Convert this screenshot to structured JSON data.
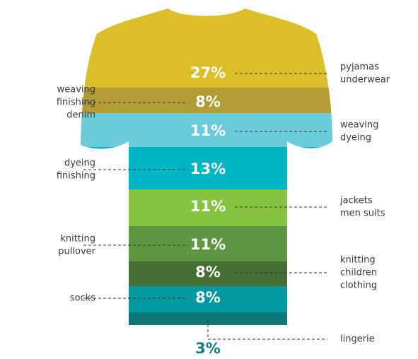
{
  "chart_data": {
    "type": "stacked-shirt",
    "segments": [
      {
        "id": "pyjamas",
        "value": 27,
        "label": "27%",
        "color": "#dcbd2a",
        "desc_lines": [
          "pyjamas",
          "underwear"
        ],
        "side": "right"
      },
      {
        "id": "weaving-finishing-denim",
        "value": 8,
        "label": "8%",
        "color": "#b49c35",
        "desc_lines": [
          "weaving",
          "finishing",
          "denim"
        ],
        "side": "left"
      },
      {
        "id": "weaving-dyeing",
        "value": 11,
        "label": "11%",
        "color": "#6ccbd9",
        "desc_lines": [
          "weaving",
          "dyeing"
        ],
        "side": "right"
      },
      {
        "id": "dyeing-finishing",
        "value": 13,
        "label": "13%",
        "color": "#00b5c3",
        "desc_lines": [
          "dyeing",
          "finishing"
        ],
        "side": "left"
      },
      {
        "id": "jackets",
        "value": 11,
        "label": "11%",
        "color": "#86c341",
        "desc_lines": [
          "jackets",
          "men suits"
        ],
        "side": "right"
      },
      {
        "id": "knitting-pullover",
        "value": 11,
        "label": "11%",
        "color": "#5f9641",
        "desc_lines": [
          "knitting",
          "pullover"
        ],
        "side": "left"
      },
      {
        "id": "knitting-children",
        "value": 8,
        "label": "8%",
        "color": "#466f35",
        "desc_lines": [
          "knitting",
          "children",
          "clothing"
        ],
        "side": "right"
      },
      {
        "id": "socks",
        "value": 8,
        "label": "8%",
        "color": "#00999f",
        "desc_lines": [
          "socks"
        ],
        "side": "left"
      },
      {
        "id": "lingerie",
        "value": 3,
        "label": "3%",
        "color": "#0e7679",
        "desc_lines": [
          "lingerie"
        ],
        "side": "right"
      }
    ]
  }
}
